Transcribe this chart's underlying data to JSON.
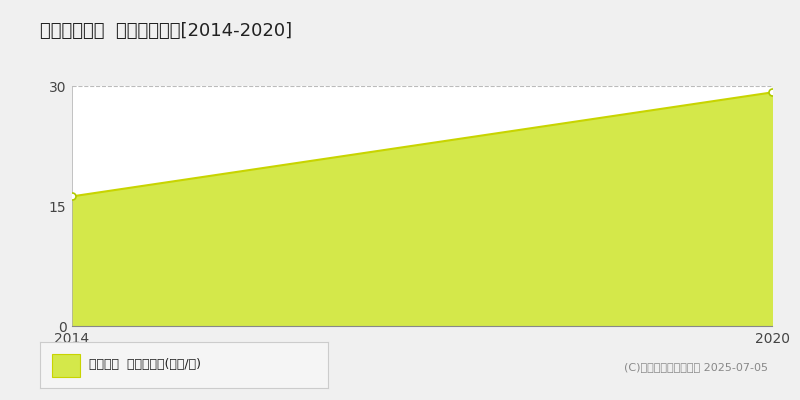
{
  "title": "別府市汐見町  土地価格推移[2014-2020]",
  "years": [
    2014,
    2020
  ],
  "values": [
    16.2,
    29.2
  ],
  "line_color": "#c8d400",
  "fill_color": "#d4e84a",
  "fill_alpha": 1.0,
  "marker_color": "#ffffff",
  "marker_edge_color": "#b0c800",
  "ylim": [
    0,
    30
  ],
  "yticks": [
    0,
    15,
    30
  ],
  "xlim": [
    2014,
    2020
  ],
  "xticks": [
    2014,
    2020
  ],
  "grid_color": "#bbbbbb",
  "bg_color": "#f0f0f0",
  "plot_bg_color": "#ffffff",
  "legend_label": "土地価格  平均坪単価(万円/坪)",
  "copyright_text": "(C)土地価格ドットコム 2025-07-05",
  "title_fontsize": 13,
  "tick_fontsize": 10,
  "legend_fontsize": 9,
  "copyright_fontsize": 8
}
